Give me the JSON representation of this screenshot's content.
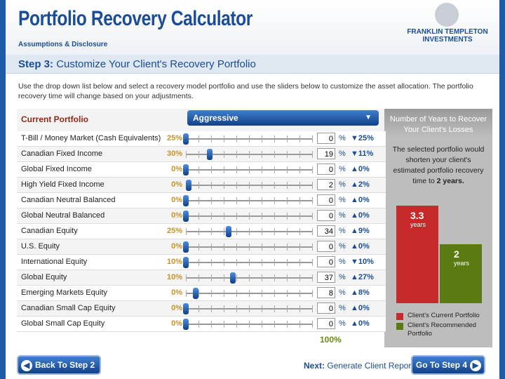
{
  "header": {
    "title": "Portfolio Recovery Calculator",
    "link": "Assumptions & Disclosure",
    "logo": [
      "FRANKLIN TEMPLETON",
      "INVESTMENTS"
    ]
  },
  "step": {
    "label": "Step 3:",
    "title": "Customize Your Client's Recovery Portfolio",
    "instructions": "Use the drop down list below and select a recovery model portfolio and use the sliders below to customize the asset allocation. The portfolio recovery time will change based on your adjustments."
  },
  "portfolio": {
    "header": "Current Portfolio",
    "model": "Aggressive",
    "unit": "%",
    "slider_range": [
      0,
      100
    ],
    "total": "100%",
    "rows": [
      {
        "name": "T-Bill / Money Market (Cash Equivalents)",
        "current": "25%",
        "value": 0,
        "change": "▼25%"
      },
      {
        "name": "Canadian Fixed Income",
        "current": "30%",
        "value": 19,
        "change": "▼11%"
      },
      {
        "name": "Global Fixed Income",
        "current": "0%",
        "value": 0,
        "change": "▲0%"
      },
      {
        "name": "High Yield Fixed Income",
        "current": "0%",
        "value": 2,
        "change": "▲2%"
      },
      {
        "name": "Canadian Neutral Balanced",
        "current": "0%",
        "value": 0,
        "change": "▲0%"
      },
      {
        "name": "Global Neutral Balanced",
        "current": "0%",
        "value": 0,
        "change": "▲0%"
      },
      {
        "name": "Canadian Equity",
        "current": "25%",
        "value": 34,
        "change": "▲9%"
      },
      {
        "name": "U.S. Equity",
        "current": "0%",
        "value": 0,
        "change": "▲0%"
      },
      {
        "name": "International Equity",
        "current": "10%",
        "value": 0,
        "change": "▼10%"
      },
      {
        "name": "Global Equity",
        "current": "10%",
        "value": 37,
        "change": "▲27%"
      },
      {
        "name": "Emerging Markets Equity",
        "current": "0%",
        "value": 8,
        "change": "▲8%"
      },
      {
        "name": "Canadian Small Cap Equity",
        "current": "0%",
        "value": 0,
        "change": "▲0%"
      },
      {
        "name": "Global Small Cap Equity",
        "current": "0%",
        "value": 0,
        "change": "▲0%"
      }
    ]
  },
  "recovery": {
    "title": "Number of Years to Recover Your Client's Losses",
    "text": "The selected portfolio would shorten your client's estimated portfolio recovery time to",
    "text_bold": "2 years.",
    "ylim": [
      0,
      4
    ],
    "unit": "years",
    "series": [
      {
        "name": "Client's Current Portfolio",
        "color": "#c8292b",
        "value": 3.3
      },
      {
        "name": "Client's Recommended Portfolio",
        "color": "#5b7a12",
        "value": 2
      }
    ]
  },
  "footer": {
    "back": "Back To Step 2",
    "next_label": "Next:",
    "next_text": "Generate Client Report",
    "forward": "Go To Step 4"
  }
}
